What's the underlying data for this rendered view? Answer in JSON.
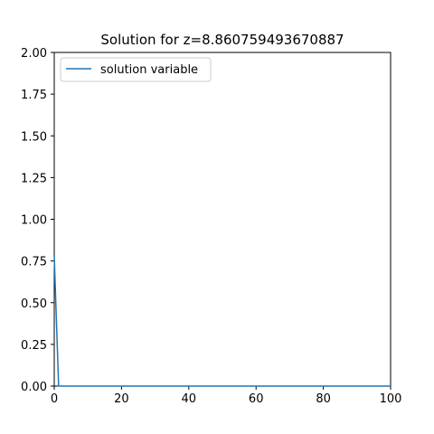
{
  "chart_data": {
    "type": "line",
    "title": "Solution for z=8.860759493670887",
    "xlabel": "",
    "ylabel": "",
    "xlim": [
      0,
      100
    ],
    "ylim": [
      0,
      2.0
    ],
    "x_ticks": [
      "0",
      "20",
      "40",
      "60",
      "80",
      "100"
    ],
    "y_ticks": [
      "0.00",
      "0.25",
      "0.50",
      "0.75",
      "1.00",
      "1.25",
      "1.50",
      "1.75",
      "2.00"
    ],
    "grid": false,
    "legend_position": "top-left",
    "series": [
      {
        "name": "solution variable",
        "color": "#1f77b4",
        "x": [
          0,
          1.3,
          2.5,
          100
        ],
        "y": [
          0.78,
          0.0,
          0.0,
          0.0
        ]
      }
    ]
  }
}
